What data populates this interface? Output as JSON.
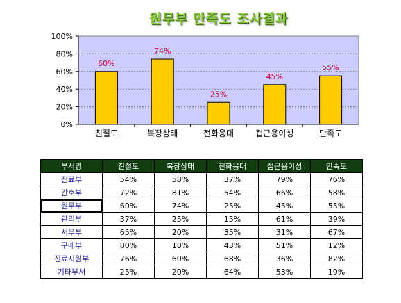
{
  "chart_data": {
    "type": "bar",
    "title": "원무부 만족도 조사결과",
    "categories": [
      "친절도",
      "복장상태",
      "전화응대",
      "접근용이성",
      "만족도"
    ],
    "values": [
      60,
      74,
      25,
      45,
      55
    ],
    "data_labels": [
      "60%",
      "74%",
      "25%",
      "45%",
      "55%"
    ],
    "ylim": [
      0,
      100
    ],
    "yticks": [
      0,
      20,
      40,
      60,
      80,
      100
    ],
    "ytick_labels": [
      "0%",
      "20%",
      "40%",
      "60%",
      "80%",
      "100%"
    ],
    "grid": true,
    "legend": "none",
    "bar_color": "#ffcc00",
    "plot_background": "#ccccff",
    "data_label_color": "#cc0033"
  },
  "table": {
    "headers": [
      "부서명",
      "친절도",
      "복장상태",
      "전화응대",
      "접근용이성",
      "만족도"
    ],
    "rows": [
      [
        "진료부",
        "54%",
        "58%",
        "37%",
        "79%",
        "76%"
      ],
      [
        "간호부",
        "72%",
        "81%",
        "54%",
        "66%",
        "58%"
      ],
      [
        "원무부",
        "60%",
        "74%",
        "25%",
        "45%",
        "55%"
      ],
      [
        "관리부",
        "37%",
        "25%",
        "15%",
        "61%",
        "39%"
      ],
      [
        "서무부",
        "65%",
        "20%",
        "35%",
        "31%",
        "67%"
      ],
      [
        "구매부",
        "80%",
        "18%",
        "43%",
        "51%",
        "12%"
      ],
      [
        "진료지원부",
        "76%",
        "60%",
        "68%",
        "36%",
        "82%"
      ],
      [
        "기타부서",
        "25%",
        "20%",
        "64%",
        "53%",
        "19%"
      ]
    ],
    "header_color": "#0f3d0f",
    "dept_text_color": "#1f1f9e"
  }
}
